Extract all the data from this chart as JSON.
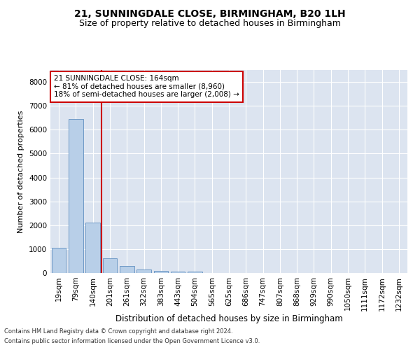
{
  "title1": "21, SUNNINGDALE CLOSE, BIRMINGHAM, B20 1LH",
  "title2": "Size of property relative to detached houses in Birmingham",
  "xlabel": "Distribution of detached houses by size in Birmingham",
  "ylabel": "Number of detached properties",
  "footnote1": "Contains HM Land Registry data © Crown copyright and database right 2024.",
  "footnote2": "Contains public sector information licensed under the Open Government Licence v3.0.",
  "annotation_line1": "21 SUNNINGDALE CLOSE: 164sqm",
  "annotation_line2": "← 81% of detached houses are smaller (8,960)",
  "annotation_line3": "18% of semi-detached houses are larger (2,008) →",
  "bar_categories": [
    "19sqm",
    "79sqm",
    "140sqm",
    "201sqm",
    "261sqm",
    "322sqm",
    "383sqm",
    "443sqm",
    "504sqm",
    "565sqm",
    "625sqm",
    "686sqm",
    "747sqm",
    "807sqm",
    "868sqm",
    "929sqm",
    "990sqm",
    "1050sqm",
    "1111sqm",
    "1172sqm",
    "1232sqm"
  ],
  "bar_values": [
    1050,
    6450,
    2100,
    620,
    290,
    150,
    80,
    50,
    50,
    0,
    0,
    0,
    0,
    0,
    0,
    0,
    0,
    0,
    0,
    0,
    0
  ],
  "bar_color": "#b8cfe8",
  "bar_edgecolor": "#6090c0",
  "vline_color": "#cc0000",
  "vline_x": 2.5,
  "ylim": [
    0,
    8500
  ],
  "yticks": [
    0,
    1000,
    2000,
    3000,
    4000,
    5000,
    6000,
    7000,
    8000
  ],
  "plot_bg_color": "#dce4f0",
  "annotation_box_color": "#cc0000",
  "title1_fontsize": 10,
  "title2_fontsize": 9,
  "xlabel_fontsize": 8.5,
  "ylabel_fontsize": 8,
  "annotation_fontsize": 7.5,
  "tick_fontsize": 7.5,
  "footnote_fontsize": 6
}
